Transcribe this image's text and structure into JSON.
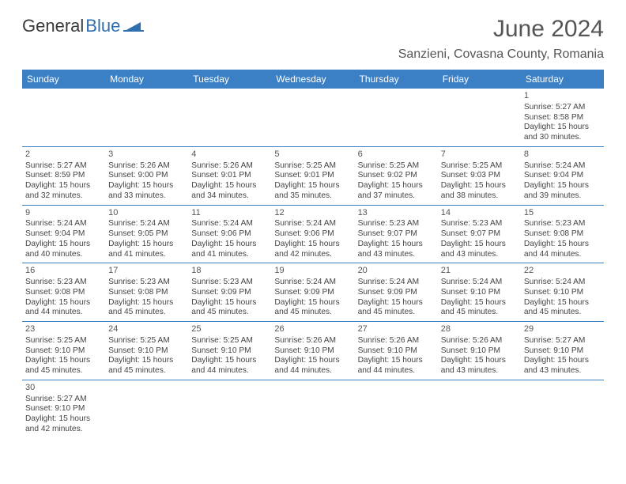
{
  "header": {
    "logo_part1": "General",
    "logo_part2": "Blue",
    "month_title": "June 2024",
    "location": "Sanzieni, Covasna County, Romania"
  },
  "colors": {
    "header_bg": "#3b7fc4",
    "header_fg": "#ffffff",
    "rule": "#3b7fc4",
    "text": "#444444",
    "title": "#555555",
    "logo_blue": "#2f6fae"
  },
  "day_names": [
    "Sunday",
    "Monday",
    "Tuesday",
    "Wednesday",
    "Thursday",
    "Friday",
    "Saturday"
  ],
  "weeks": [
    [
      null,
      null,
      null,
      null,
      null,
      null,
      {
        "n": "1",
        "sr": "Sunrise: 5:27 AM",
        "ss": "Sunset: 8:58 PM",
        "d1": "Daylight: 15 hours",
        "d2": "and 30 minutes."
      }
    ],
    [
      {
        "n": "2",
        "sr": "Sunrise: 5:27 AM",
        "ss": "Sunset: 8:59 PM",
        "d1": "Daylight: 15 hours",
        "d2": "and 32 minutes."
      },
      {
        "n": "3",
        "sr": "Sunrise: 5:26 AM",
        "ss": "Sunset: 9:00 PM",
        "d1": "Daylight: 15 hours",
        "d2": "and 33 minutes."
      },
      {
        "n": "4",
        "sr": "Sunrise: 5:26 AM",
        "ss": "Sunset: 9:01 PM",
        "d1": "Daylight: 15 hours",
        "d2": "and 34 minutes."
      },
      {
        "n": "5",
        "sr": "Sunrise: 5:25 AM",
        "ss": "Sunset: 9:01 PM",
        "d1": "Daylight: 15 hours",
        "d2": "and 35 minutes."
      },
      {
        "n": "6",
        "sr": "Sunrise: 5:25 AM",
        "ss": "Sunset: 9:02 PM",
        "d1": "Daylight: 15 hours",
        "d2": "and 37 minutes."
      },
      {
        "n": "7",
        "sr": "Sunrise: 5:25 AM",
        "ss": "Sunset: 9:03 PM",
        "d1": "Daylight: 15 hours",
        "d2": "and 38 minutes."
      },
      {
        "n": "8",
        "sr": "Sunrise: 5:24 AM",
        "ss": "Sunset: 9:04 PM",
        "d1": "Daylight: 15 hours",
        "d2": "and 39 minutes."
      }
    ],
    [
      {
        "n": "9",
        "sr": "Sunrise: 5:24 AM",
        "ss": "Sunset: 9:04 PM",
        "d1": "Daylight: 15 hours",
        "d2": "and 40 minutes."
      },
      {
        "n": "10",
        "sr": "Sunrise: 5:24 AM",
        "ss": "Sunset: 9:05 PM",
        "d1": "Daylight: 15 hours",
        "d2": "and 41 minutes."
      },
      {
        "n": "11",
        "sr": "Sunrise: 5:24 AM",
        "ss": "Sunset: 9:06 PM",
        "d1": "Daylight: 15 hours",
        "d2": "and 41 minutes."
      },
      {
        "n": "12",
        "sr": "Sunrise: 5:24 AM",
        "ss": "Sunset: 9:06 PM",
        "d1": "Daylight: 15 hours",
        "d2": "and 42 minutes."
      },
      {
        "n": "13",
        "sr": "Sunrise: 5:23 AM",
        "ss": "Sunset: 9:07 PM",
        "d1": "Daylight: 15 hours",
        "d2": "and 43 minutes."
      },
      {
        "n": "14",
        "sr": "Sunrise: 5:23 AM",
        "ss": "Sunset: 9:07 PM",
        "d1": "Daylight: 15 hours",
        "d2": "and 43 minutes."
      },
      {
        "n": "15",
        "sr": "Sunrise: 5:23 AM",
        "ss": "Sunset: 9:08 PM",
        "d1": "Daylight: 15 hours",
        "d2": "and 44 minutes."
      }
    ],
    [
      {
        "n": "16",
        "sr": "Sunrise: 5:23 AM",
        "ss": "Sunset: 9:08 PM",
        "d1": "Daylight: 15 hours",
        "d2": "and 44 minutes."
      },
      {
        "n": "17",
        "sr": "Sunrise: 5:23 AM",
        "ss": "Sunset: 9:08 PM",
        "d1": "Daylight: 15 hours",
        "d2": "and 45 minutes."
      },
      {
        "n": "18",
        "sr": "Sunrise: 5:23 AM",
        "ss": "Sunset: 9:09 PM",
        "d1": "Daylight: 15 hours",
        "d2": "and 45 minutes."
      },
      {
        "n": "19",
        "sr": "Sunrise: 5:24 AM",
        "ss": "Sunset: 9:09 PM",
        "d1": "Daylight: 15 hours",
        "d2": "and 45 minutes."
      },
      {
        "n": "20",
        "sr": "Sunrise: 5:24 AM",
        "ss": "Sunset: 9:09 PM",
        "d1": "Daylight: 15 hours",
        "d2": "and 45 minutes."
      },
      {
        "n": "21",
        "sr": "Sunrise: 5:24 AM",
        "ss": "Sunset: 9:10 PM",
        "d1": "Daylight: 15 hours",
        "d2": "and 45 minutes."
      },
      {
        "n": "22",
        "sr": "Sunrise: 5:24 AM",
        "ss": "Sunset: 9:10 PM",
        "d1": "Daylight: 15 hours",
        "d2": "and 45 minutes."
      }
    ],
    [
      {
        "n": "23",
        "sr": "Sunrise: 5:25 AM",
        "ss": "Sunset: 9:10 PM",
        "d1": "Daylight: 15 hours",
        "d2": "and 45 minutes."
      },
      {
        "n": "24",
        "sr": "Sunrise: 5:25 AM",
        "ss": "Sunset: 9:10 PM",
        "d1": "Daylight: 15 hours",
        "d2": "and 45 minutes."
      },
      {
        "n": "25",
        "sr": "Sunrise: 5:25 AM",
        "ss": "Sunset: 9:10 PM",
        "d1": "Daylight: 15 hours",
        "d2": "and 44 minutes."
      },
      {
        "n": "26",
        "sr": "Sunrise: 5:26 AM",
        "ss": "Sunset: 9:10 PM",
        "d1": "Daylight: 15 hours",
        "d2": "and 44 minutes."
      },
      {
        "n": "27",
        "sr": "Sunrise: 5:26 AM",
        "ss": "Sunset: 9:10 PM",
        "d1": "Daylight: 15 hours",
        "d2": "and 44 minutes."
      },
      {
        "n": "28",
        "sr": "Sunrise: 5:26 AM",
        "ss": "Sunset: 9:10 PM",
        "d1": "Daylight: 15 hours",
        "d2": "and 43 minutes."
      },
      {
        "n": "29",
        "sr": "Sunrise: 5:27 AM",
        "ss": "Sunset: 9:10 PM",
        "d1": "Daylight: 15 hours",
        "d2": "and 43 minutes."
      }
    ],
    [
      {
        "n": "30",
        "sr": "Sunrise: 5:27 AM",
        "ss": "Sunset: 9:10 PM",
        "d1": "Daylight: 15 hours",
        "d2": "and 42 minutes."
      },
      null,
      null,
      null,
      null,
      null,
      null
    ]
  ]
}
